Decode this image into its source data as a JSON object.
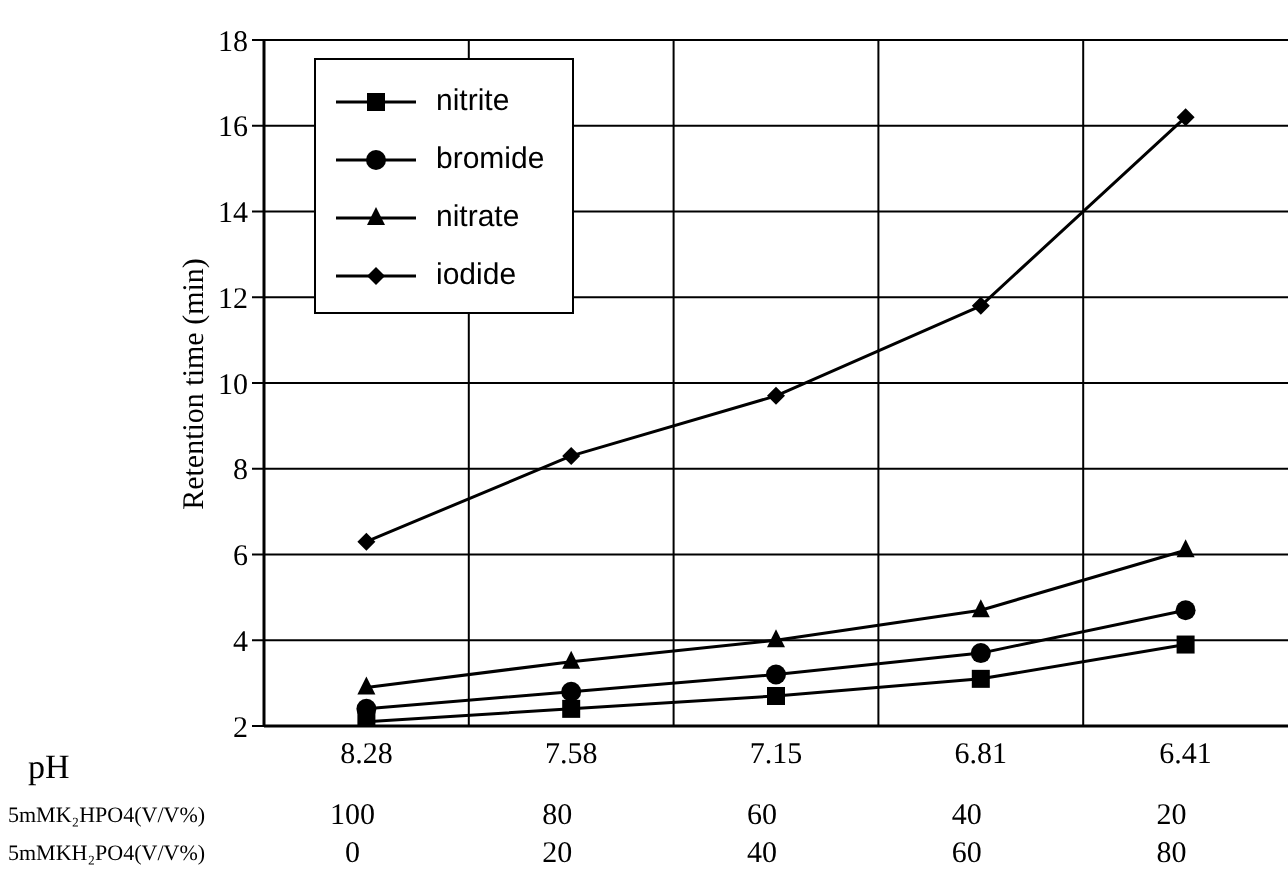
{
  "chart_data": {
    "type": "line",
    "ylabel": "Retention time (min)",
    "categories": [
      "8.28",
      "7.58",
      "7.15",
      "6.81",
      "6.41"
    ],
    "series": [
      {
        "name": "nitrite",
        "color": "#000000",
        "marker": "square",
        "values": [
          2.1,
          2.4,
          2.7,
          3.1,
          3.9
        ]
      },
      {
        "name": "bromide",
        "color": "#000000",
        "marker": "circle",
        "values": [
          2.4,
          2.8,
          3.2,
          3.7,
          4.7
        ]
      },
      {
        "name": "nitrate",
        "color": "#000000",
        "marker": "triangle",
        "values": [
          2.9,
          3.5,
          4.0,
          4.7,
          6.1
        ]
      },
      {
        "name": "iodide",
        "color": "#000000",
        "marker": "diamond",
        "values": [
          6.3,
          8.3,
          9.7,
          11.8,
          16.2
        ]
      }
    ],
    "ylim": [
      2,
      18
    ],
    "yticks": [
      2,
      4,
      6,
      8,
      10,
      12,
      14,
      16,
      18
    ],
    "grid": true,
    "legend": "top left",
    "line_style": "solid",
    "annotations": [
      "pH",
      "5mMK₂HPO4(V/V%)",
      "100",
      "80",
      "60",
      "40",
      "20",
      "5mMKH₂PO4(V/V%)",
      "0",
      "20",
      "40",
      "60",
      "80"
    ]
  }
}
